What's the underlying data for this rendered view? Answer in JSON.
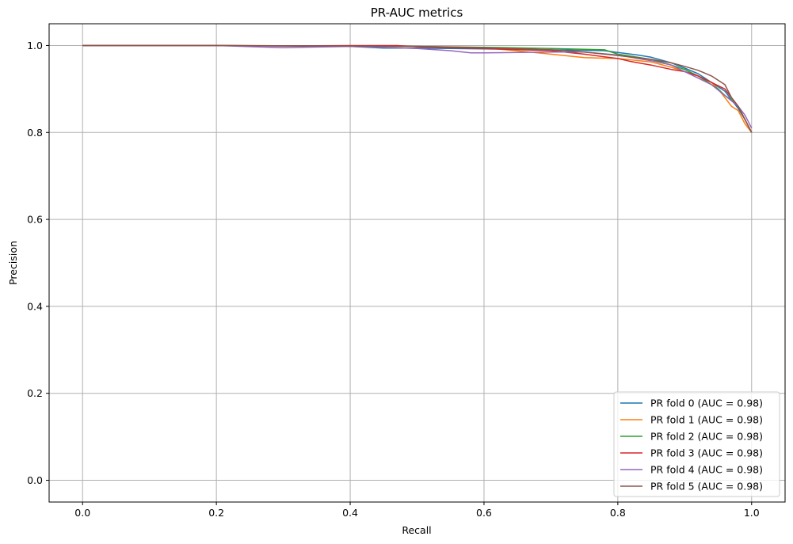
{
  "chart_data": {
    "type": "line",
    "title": "PR-AUC metrics",
    "xlabel": "Recall",
    "ylabel": "Precision",
    "xlim": [
      -0.05,
      1.05
    ],
    "ylim": [
      -0.05,
      1.05
    ],
    "xticks": [
      "0.0",
      "0.2",
      "0.4",
      "0.6",
      "0.8",
      "1.0"
    ],
    "yticks": [
      "0.0",
      "0.2",
      "0.4",
      "0.6",
      "0.8",
      "1.0"
    ],
    "grid": true,
    "legend_position": "lower-right",
    "series": [
      {
        "name": "PR fold 0 (AUC = 0.98)",
        "color": "#1f77b4",
        "x": [
          0.0,
          0.2,
          0.4,
          0.45,
          0.5,
          0.55,
          0.6,
          0.7,
          0.78,
          0.8,
          0.83,
          0.85,
          0.88,
          0.9,
          0.92,
          0.94,
          0.96,
          0.97,
          0.98,
          0.99,
          1.0
        ],
        "y": [
          1.0,
          1.0,
          0.998,
          0.994,
          0.994,
          0.993,
          0.992,
          0.99,
          0.988,
          0.984,
          0.978,
          0.973,
          0.96,
          0.948,
          0.935,
          0.915,
          0.895,
          0.875,
          0.855,
          0.83,
          0.8
        ]
      },
      {
        "name": "PR fold 1 (AUC = 0.98)",
        "color": "#ff7f0e",
        "x": [
          0.0,
          0.2,
          0.4,
          0.5,
          0.6,
          0.7,
          0.75,
          0.8,
          0.85,
          0.88,
          0.9,
          0.92,
          0.94,
          0.95,
          0.96,
          0.97,
          0.98,
          0.99,
          1.0
        ],
        "y": [
          1.0,
          1.0,
          0.999,
          0.998,
          0.995,
          0.98,
          0.972,
          0.97,
          0.962,
          0.95,
          0.94,
          0.93,
          0.915,
          0.9,
          0.88,
          0.86,
          0.85,
          0.82,
          0.8
        ]
      },
      {
        "name": "PR fold 2 (AUC = 0.98)",
        "color": "#2ca02c",
        "x": [
          0.0,
          0.2,
          0.4,
          0.5,
          0.6,
          0.7,
          0.78,
          0.8,
          0.85,
          0.88,
          0.9,
          0.92,
          0.94,
          0.95,
          0.96,
          0.97,
          0.98,
          0.99,
          1.0
        ],
        "y": [
          1.0,
          1.0,
          0.999,
          0.998,
          0.996,
          0.993,
          0.99,
          0.98,
          0.968,
          0.955,
          0.945,
          0.93,
          0.91,
          0.9,
          0.885,
          0.875,
          0.86,
          0.83,
          0.8
        ]
      },
      {
        "name": "PR fold 3 (AUC = 0.98)",
        "color": "#d62728",
        "x": [
          0.0,
          0.2,
          0.3,
          0.4,
          0.47,
          0.5,
          0.6,
          0.7,
          0.75,
          0.8,
          0.82,
          0.85,
          0.88,
          0.9,
          0.92,
          0.94,
          0.96,
          0.97,
          0.98,
          0.99,
          1.0
        ],
        "y": [
          1.0,
          1.0,
          0.999,
          1.0,
          1.0,
          0.997,
          0.993,
          0.988,
          0.98,
          0.97,
          0.963,
          0.955,
          0.945,
          0.94,
          0.93,
          0.915,
          0.9,
          0.88,
          0.86,
          0.83,
          0.8
        ]
      },
      {
        "name": "PR fold 4 (AUC = 0.98)",
        "color": "#9467bd",
        "x": [
          0.0,
          0.2,
          0.3,
          0.4,
          0.45,
          0.5,
          0.55,
          0.58,
          0.6,
          0.7,
          0.75,
          0.8,
          0.85,
          0.88,
          0.9,
          0.92,
          0.94,
          0.96,
          0.98,
          0.99,
          1.0
        ],
        "y": [
          1.0,
          1.0,
          0.995,
          0.998,
          0.996,
          0.993,
          0.988,
          0.983,
          0.983,
          0.985,
          0.985,
          0.978,
          0.965,
          0.955,
          0.94,
          0.925,
          0.91,
          0.885,
          0.86,
          0.84,
          0.81
        ]
      },
      {
        "name": "PR fold 5 (AUC = 0.98)",
        "color": "#8c564b",
        "x": [
          0.0,
          0.2,
          0.4,
          0.5,
          0.6,
          0.7,
          0.75,
          0.8,
          0.85,
          0.88,
          0.9,
          0.92,
          0.94,
          0.96,
          0.97,
          0.98,
          0.99,
          1.0
        ],
        "y": [
          1.0,
          1.0,
          0.999,
          0.998,
          0.995,
          0.99,
          0.985,
          0.977,
          0.968,
          0.96,
          0.952,
          0.943,
          0.93,
          0.91,
          0.88,
          0.86,
          0.83,
          0.8
        ]
      }
    ]
  }
}
